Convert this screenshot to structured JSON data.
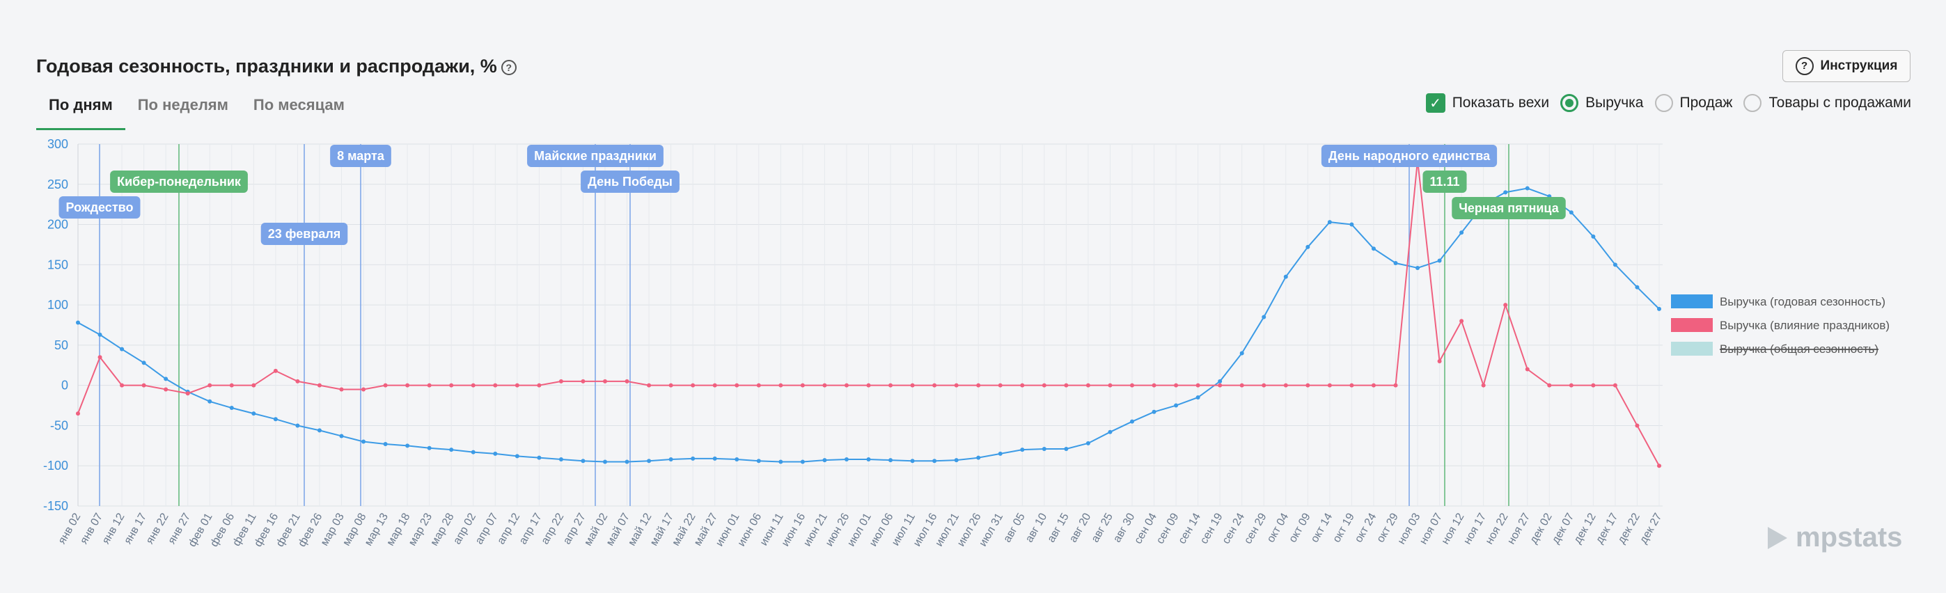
{
  "header": {
    "title": "Годовая сезонность, праздники и распродажи, %",
    "button": "Инструкция"
  },
  "tabs": [
    "По дням",
    "По неделям",
    "По месяцам"
  ],
  "controls": {
    "checkbox": "Показать вехи",
    "radios": [
      "Выручка",
      "Продаж",
      "Товары с продажами"
    ]
  },
  "logo": "mpstats",
  "chart_data": {
    "type": "line",
    "categories": [
      "янв 02",
      "янв 07",
      "янв 12",
      "янв 17",
      "янв 22",
      "янв 27",
      "фев 01",
      "фев 06",
      "фев 11",
      "фев 16",
      "фев 21",
      "фев 26",
      "мар 03",
      "мар 08",
      "мар 13",
      "мар 18",
      "мар 23",
      "мар 28",
      "апр 02",
      "апр 07",
      "апр 12",
      "апр 17",
      "апр 22",
      "апр 27",
      "май 02",
      "май 07",
      "май 12",
      "май 17",
      "май 22",
      "май 27",
      "июн 01",
      "июн 06",
      "июн 11",
      "июн 16",
      "июн 21",
      "июн 26",
      "июл 01",
      "июл 06",
      "июл 11",
      "июл 16",
      "июл 21",
      "июл 26",
      "июл 31",
      "авг 05",
      "авг 10",
      "авг 15",
      "авг 20",
      "авг 25",
      "авг 30",
      "сен 04",
      "сен 09",
      "сен 14",
      "сен 19",
      "сен 24",
      "сен 29",
      "окт 04",
      "окт 09",
      "окт 14",
      "окт 19",
      "окт 24",
      "окт 29",
      "ноя 03",
      "ноя 07",
      "ноя 12",
      "ноя 17",
      "ноя 22",
      "ноя 27",
      "дек 02",
      "дек 07",
      "дек 12",
      "дек 17",
      "дек 22",
      "дек 27"
    ],
    "series": [
      {
        "name": "Выручка (годовая сезонность)",
        "color": "#3c9be6",
        "values": [
          78,
          63,
          45,
          28,
          8,
          -8,
          -20,
          -28,
          -35,
          -42,
          -50,
          -56,
          -63,
          -70,
          -73,
          -75,
          -78,
          -80,
          -83,
          -85,
          -88,
          -90,
          -92,
          -94,
          -95,
          -95,
          -94,
          -92,
          -91,
          -91,
          -92,
          -94,
          -95,
          -95,
          -93,
          -92,
          -92,
          -93,
          -94,
          -94,
          -93,
          -90,
          -85,
          -80,
          -79,
          -79,
          -72,
          -58,
          -45,
          -33,
          -25,
          -15,
          5,
          40,
          85,
          135,
          172,
          203,
          200,
          170,
          152,
          146,
          155,
          190,
          225,
          240,
          245,
          235,
          215,
          185,
          150,
          122,
          95
        ]
      },
      {
        "name": "Выручка (влияние праздников)",
        "color": "#f0607f",
        "values": [
          -35,
          35,
          0,
          0,
          -5,
          -10,
          0,
          0,
          0,
          18,
          5,
          0,
          -5,
          -5,
          0,
          0,
          0,
          0,
          0,
          0,
          0,
          0,
          5,
          5,
          5,
          5,
          0,
          0,
          0,
          0,
          0,
          0,
          0,
          0,
          0,
          0,
          0,
          0,
          0,
          0,
          0,
          0,
          0,
          0,
          0,
          0,
          0,
          0,
          0,
          0,
          0,
          0,
          0,
          0,
          0,
          0,
          0,
          0,
          0,
          0,
          0,
          280,
          30,
          80,
          0,
          100,
          20,
          0,
          0,
          0,
          0,
          -50,
          -100
        ]
      },
      {
        "name": "Выручка (общая сезонность)",
        "color": "#b8dfe0",
        "visible": false
      }
    ],
    "milestones": [
      {
        "label": "Рождество",
        "color": "#7aa3e8"
      },
      {
        "label": "Кибер-понедельник",
        "color": "#5fb878"
      },
      {
        "label": "23 февраля",
        "color": "#7aa3e8"
      },
      {
        "label": "8 марта",
        "color": "#7aa3e8"
      },
      {
        "label": "Майские праздники",
        "color": "#7aa3e8"
      },
      {
        "label": "День Победы",
        "color": "#7aa3e8"
      },
      {
        "label": "День народного единства",
        "color": "#7aa3e8"
      },
      {
        "label": "11.11",
        "color": "#5fb878"
      },
      {
        "label": "Черная пятница",
        "color": "#5fb878"
      }
    ],
    "ylim": [
      -150,
      300
    ],
    "yticks": [
      300,
      250,
      200,
      150,
      100,
      50,
      0,
      -50,
      -100,
      -150
    ],
    "grid": true
  }
}
